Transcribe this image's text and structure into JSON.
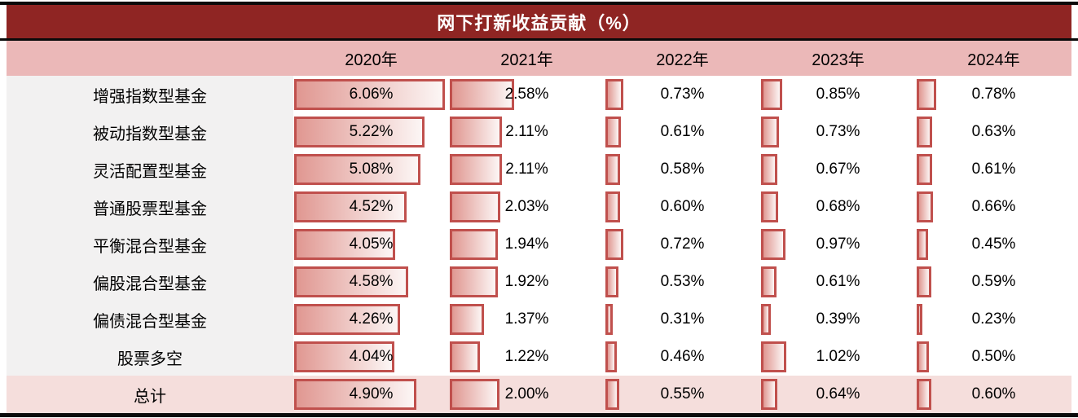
{
  "title": "网下打新收益贡献（%）",
  "header": {
    "columns": [
      "2020年",
      "2021年",
      "2022年",
      "2023年",
      "2024年"
    ]
  },
  "colors": {
    "title_bg": "#8F2523",
    "title_text": "#FFFFFF",
    "header_bg": "#EBB8B8",
    "label_column_bg": "#F2F1F1",
    "total_row_bg": "#F5DEDC",
    "bar_border": "#C0504D",
    "bar_gradient_from": "#E09791",
    "bar_gradient_to": "#FCF6F5",
    "rule": "#0A0A0A"
  },
  "chart_data": {
    "type": "table",
    "title": "网下打新收益贡献（%）",
    "unit": "%",
    "categories": [
      "2020年",
      "2021年",
      "2022年",
      "2023年",
      "2024年"
    ],
    "rows": [
      {
        "label": "增强指数型基金",
        "values": [
          6.06,
          2.58,
          0.73,
          0.85,
          0.78
        ],
        "is_total": false
      },
      {
        "label": "被动指数型基金",
        "values": [
          5.22,
          2.11,
          0.61,
          0.73,
          0.63
        ],
        "is_total": false
      },
      {
        "label": "灵活配置型基金",
        "values": [
          5.08,
          2.11,
          0.58,
          0.67,
          0.61
        ],
        "is_total": false
      },
      {
        "label": "普通股票型基金",
        "values": [
          4.52,
          2.03,
          0.6,
          0.68,
          0.66
        ],
        "is_total": false
      },
      {
        "label": "平衡混合型基金",
        "values": [
          4.05,
          1.94,
          0.72,
          0.97,
          0.45
        ],
        "is_total": false
      },
      {
        "label": "偏股混合型基金",
        "values": [
          4.58,
          1.92,
          0.53,
          0.61,
          0.59
        ],
        "is_total": false
      },
      {
        "label": "偏债混合型基金",
        "values": [
          4.26,
          1.37,
          0.31,
          0.39,
          0.23
        ],
        "is_total": false
      },
      {
        "label": "股票多空",
        "values": [
          4.04,
          1.22,
          0.46,
          1.02,
          0.5
        ],
        "is_total": false
      },
      {
        "label": "总计",
        "values": [
          4.9,
          2.0,
          0.55,
          0.64,
          0.6
        ],
        "is_total": true
      }
    ],
    "bar_axis_max": 6.25,
    "value_decimals": 2,
    "layout": {
      "data_bars": true,
      "bars_in_cells": "left-aligned",
      "values_centered": true,
      "gridlines": false
    }
  }
}
